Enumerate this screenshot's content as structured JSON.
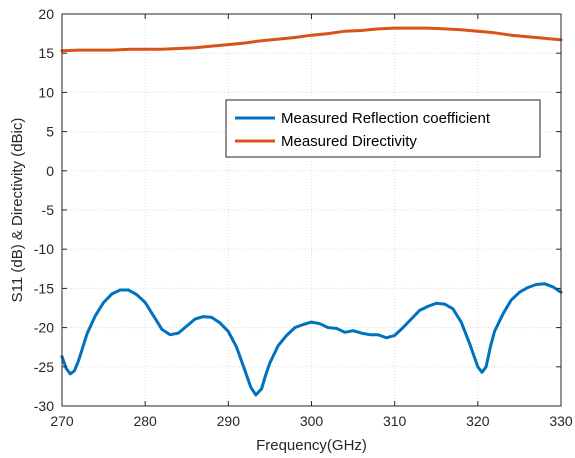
{
  "chart_data": {
    "type": "line",
    "title": "",
    "xlabel": "Frequency(GHz)",
    "ylabel": "S11 (dB) & Directivity (dBic)",
    "xlim": [
      270,
      330
    ],
    "ylim": [
      -30,
      20
    ],
    "x_ticks": [
      270,
      280,
      290,
      300,
      310,
      320,
      330
    ],
    "y_ticks": [
      -30,
      -25,
      -20,
      -15,
      -10,
      -5,
      0,
      5,
      10,
      15,
      20
    ],
    "grid": true,
    "legend_position": "upper-right",
    "series": [
      {
        "name": "Measured Reflection coefficient",
        "color": "#0072BD",
        "points": [
          [
            270,
            -23.7
          ],
          [
            270.5,
            -25.2
          ],
          [
            271,
            -25.9
          ],
          [
            271.5,
            -25.5
          ],
          [
            272,
            -24.2
          ],
          [
            272.5,
            -22.5
          ],
          [
            273,
            -20.8
          ],
          [
            274,
            -18.5
          ],
          [
            275,
            -16.8
          ],
          [
            276,
            -15.7
          ],
          [
            277,
            -15.2
          ],
          [
            278,
            -15.2
          ],
          [
            279,
            -15.8
          ],
          [
            280,
            -16.8
          ],
          [
            281,
            -18.5
          ],
          [
            282,
            -20.2
          ],
          [
            283,
            -20.9
          ],
          [
            284,
            -20.7
          ],
          [
            285,
            -19.8
          ],
          [
            286,
            -18.9
          ],
          [
            287,
            -18.6
          ],
          [
            288,
            -18.7
          ],
          [
            289,
            -19.4
          ],
          [
            290,
            -20.5
          ],
          [
            291,
            -22.5
          ],
          [
            292,
            -25.5
          ],
          [
            292.7,
            -27.6
          ],
          [
            293.3,
            -28.6
          ],
          [
            294,
            -27.8
          ],
          [
            294.5,
            -26.0
          ],
          [
            295,
            -24.5
          ],
          [
            296,
            -22.3
          ],
          [
            297,
            -21.0
          ],
          [
            298,
            -20.0
          ],
          [
            299,
            -19.6
          ],
          [
            300,
            -19.3
          ],
          [
            301,
            -19.5
          ],
          [
            302,
            -20.0
          ],
          [
            303,
            -20.1
          ],
          [
            304,
            -20.6
          ],
          [
            305,
            -20.4
          ],
          [
            306,
            -20.7
          ],
          [
            307,
            -20.9
          ],
          [
            308,
            -20.9
          ],
          [
            309,
            -21.3
          ],
          [
            310,
            -21.0
          ],
          [
            311,
            -20.0
          ],
          [
            312,
            -18.9
          ],
          [
            313,
            -17.8
          ],
          [
            314,
            -17.3
          ],
          [
            315,
            -16.9
          ],
          [
            316,
            -17.0
          ],
          [
            317,
            -17.6
          ],
          [
            318,
            -19.3
          ],
          [
            319,
            -22.0
          ],
          [
            320,
            -25.0
          ],
          [
            320.5,
            -25.7
          ],
          [
            321,
            -25.0
          ],
          [
            321.5,
            -22.5
          ],
          [
            322,
            -20.5
          ],
          [
            323,
            -18.3
          ],
          [
            324,
            -16.5
          ],
          [
            325,
            -15.5
          ],
          [
            326,
            -14.9
          ],
          [
            327,
            -14.5
          ],
          [
            328,
            -14.4
          ],
          [
            329,
            -14.8
          ],
          [
            330,
            -15.5
          ]
        ]
      },
      {
        "name": "Measured Directivity",
        "color": "#D95319",
        "points": [
          [
            270,
            15.3
          ],
          [
            272,
            15.4
          ],
          [
            274,
            15.4
          ],
          [
            276,
            15.4
          ],
          [
            278,
            15.5
          ],
          [
            280,
            15.5
          ],
          [
            282,
            15.5
          ],
          [
            284,
            15.6
          ],
          [
            286,
            15.7
          ],
          [
            288,
            15.9
          ],
          [
            290,
            16.1
          ],
          [
            292,
            16.3
          ],
          [
            294,
            16.6
          ],
          [
            296,
            16.8
          ],
          [
            298,
            17.0
          ],
          [
            300,
            17.3
          ],
          [
            302,
            17.5
          ],
          [
            304,
            17.8
          ],
          [
            306,
            17.9
          ],
          [
            308,
            18.1
          ],
          [
            310,
            18.2
          ],
          [
            312,
            18.2
          ],
          [
            314,
            18.2
          ],
          [
            316,
            18.1
          ],
          [
            318,
            18.0
          ],
          [
            320,
            17.8
          ],
          [
            322,
            17.6
          ],
          [
            324,
            17.3
          ],
          [
            326,
            17.1
          ],
          [
            328,
            16.9
          ],
          [
            330,
            16.7
          ]
        ]
      }
    ]
  }
}
